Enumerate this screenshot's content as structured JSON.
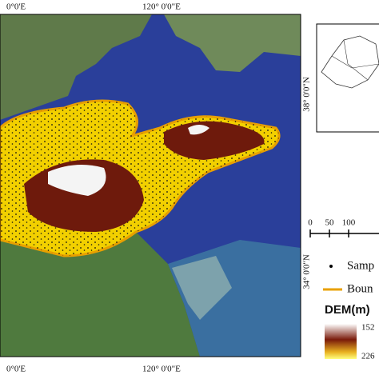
{
  "map": {
    "top_labels": [
      "0°0'E",
      "120° 0'0\"E"
    ],
    "bottom_labels": [
      "0°0'E",
      "120° 0'0\"E"
    ],
    "right_labels": [
      "38° 0'0\"N",
      "34° 0'0\"N"
    ],
    "scale_bar": [
      "0",
      "50",
      "100"
    ],
    "legend": {
      "items": [
        "Samp",
        "Boun"
      ],
      "dem_title": "DEM(m)",
      "dem_max": "152",
      "dem_min": "226"
    }
  }
}
